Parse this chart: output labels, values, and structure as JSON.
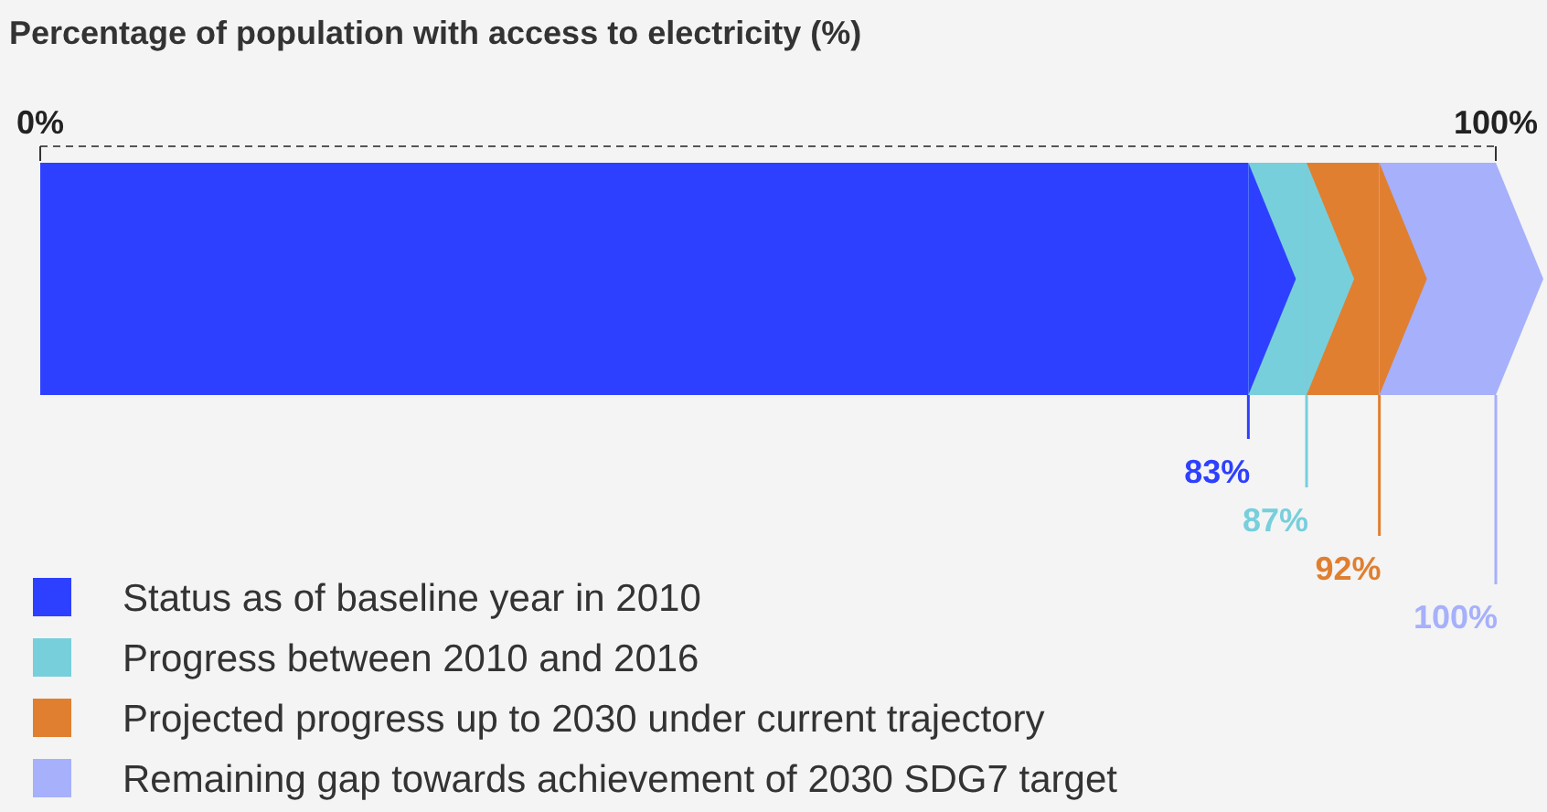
{
  "chart_data": {
    "type": "bar",
    "orientation": "horizontal",
    "stacked": true,
    "title": "Percentage of population with access to electricity (%)",
    "categories": [
      null
    ],
    "series": [
      {
        "name": "Status as of baseline year in 2010",
        "color": "#2e40ff",
        "values": [
          83
        ]
      },
      {
        "name": "Progress between 2010 and 2016",
        "color": "#77cfdc",
        "values": [
          4
        ]
      },
      {
        "name": "Projected progress up to 2030 under current trajectory",
        "color": "#e07f30",
        "values": [
          5
        ]
      },
      {
        "name": "Remaining gap towards achievement of 2030 SDG7 target",
        "color": "#a6b0fb",
        "values": [
          8
        ]
      }
    ],
    "annotations": [
      "83%",
      "87%",
      "92%",
      "100%"
    ],
    "xlim": [
      0,
      100
    ],
    "xticks": [
      {
        "value": 0,
        "label": "0%"
      },
      {
        "value": 100,
        "label": "100%"
      }
    ],
    "grid": false,
    "legend": "bottom left"
  }
}
